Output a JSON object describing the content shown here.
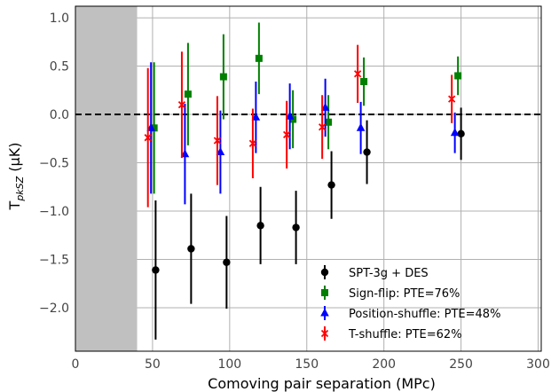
{
  "chart_data": {
    "type": "scatter",
    "xlabel": "Comoving pair separation (MPc)",
    "ylabel": "T",
    "ylabel_sub": "pkSZ",
    "ylabel_unit": " (μK)",
    "xlim": [
      0,
      302
    ],
    "ylim": [
      -2.45,
      1.12
    ],
    "xticks": [
      0,
      50,
      100,
      150,
      200,
      250,
      300
    ],
    "yticks": [
      1.0,
      0.5,
      0.0,
      -0.5,
      -1.0,
      -1.5,
      -2.0
    ],
    "xtick_labels": [
      "0",
      "50",
      "100",
      "150",
      "200",
      "250",
      "300"
    ],
    "ytick_labels": [
      "1.0",
      "0.5",
      "0.0",
      "−0.5",
      "−1.0",
      "−1.5",
      "−2.0"
    ],
    "grid": true,
    "shaded_region": {
      "x_from": 0,
      "x_to": 40,
      "color": "#c0c0c0"
    },
    "reference_line": {
      "y": 0,
      "style": "dashed",
      "color": "#000000"
    },
    "legend_position": "lower-right",
    "series": [
      {
        "name": "SPT-3g + DES",
        "marker": "circle",
        "color": "#000000",
        "x": [
          52,
          75,
          98,
          120,
          143,
          166,
          189,
          250
        ],
        "y": [
          -1.61,
          -1.39,
          -1.53,
          -1.15,
          -1.17,
          -0.73,
          -0.39,
          -0.2
        ],
        "yerr": [
          0.72,
          0.57,
          0.48,
          0.4,
          0.38,
          0.35,
          0.33,
          0.27
        ]
      },
      {
        "name": "Sign-flip: PTE=76%",
        "marker": "square",
        "color": "#008000",
        "x": [
          51,
          73,
          96,
          119,
          141,
          164,
          187,
          248
        ],
        "y": [
          -0.14,
          0.21,
          0.39,
          0.58,
          -0.05,
          -0.08,
          0.34,
          0.4
        ],
        "yerr": [
          0.68,
          0.53,
          0.44,
          0.37,
          0.3,
          0.28,
          0.25,
          0.2
        ]
      },
      {
        "name": "Position-shuffle: PTE=48%",
        "marker": "triangle",
        "color": "#0000ff",
        "x": [
          49,
          71,
          94,
          117,
          139,
          162,
          185,
          246
        ],
        "y": [
          -0.14,
          -0.41,
          -0.39,
          -0.03,
          -0.02,
          0.07,
          -0.14,
          -0.19
        ],
        "yerr": [
          0.68,
          0.52,
          0.43,
          0.37,
          0.34,
          0.3,
          0.27,
          0.21
        ]
      },
      {
        "name": "T-shuffle: PTE=62%",
        "marker": "x",
        "color": "#ff0000",
        "x": [
          47,
          69,
          92,
          115,
          137,
          160,
          183,
          244
        ],
        "y": [
          -0.24,
          0.1,
          -0.27,
          -0.3,
          -0.21,
          -0.13,
          0.42,
          0.16
        ],
        "yerr": [
          0.72,
          0.55,
          0.46,
          0.36,
          0.35,
          0.33,
          0.3,
          0.25
        ]
      }
    ]
  }
}
